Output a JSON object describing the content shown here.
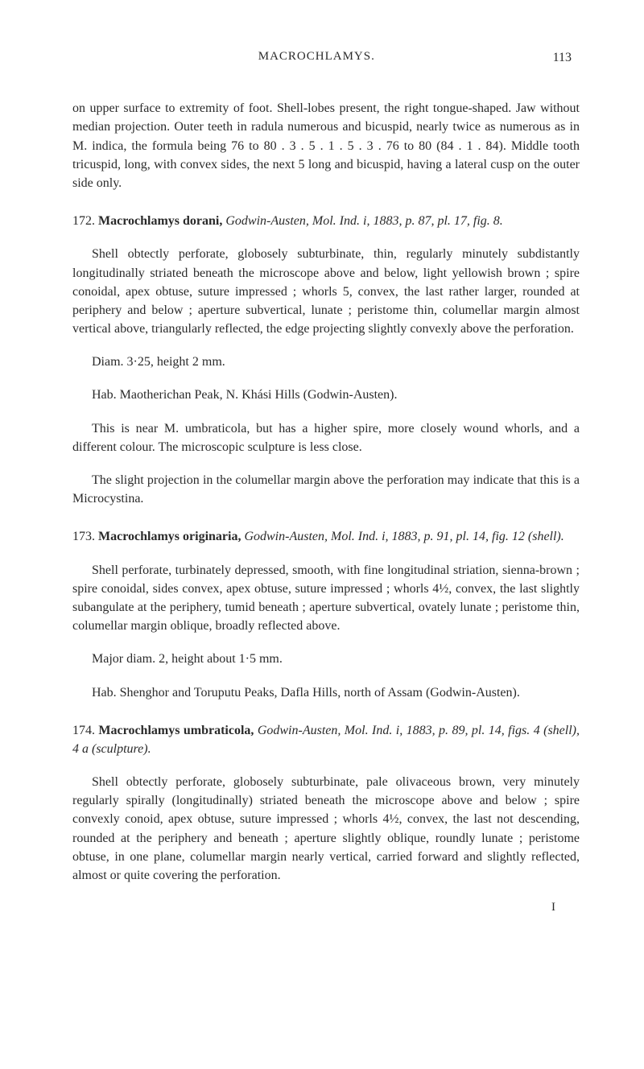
{
  "header": {
    "title": "MACROCHLAMYS.",
    "page": "113"
  },
  "para1": "on upper surface to extremity of foot. Shell-lobes present, the right tongue-shaped. Jaw without median projection. Outer teeth in radula numerous and bicuspid, nearly twice as numerous as in M. indica, the formula being 76 to 80 . 3 . 5 . 1 . 5 . 3 . 76 to 80 (84 . 1 . 84). Middle tooth tricuspid, long, with convex sides, the next 5 long and bicuspid, having a lateral cusp on the outer side only.",
  "entry172": {
    "num": "172. ",
    "name": "Macrochlamys dorani,",
    "cite": " Godwin-Austen, Mol. Ind. i, 1883, p. 87, pl. 17, fig. 8.",
    "p1": "Shell obtectly perforate, globosely subturbinate, thin, regularly minutely subdistantly longitudinally striated beneath the microscope above and below, light yellowish brown ; spire conoidal, apex obtuse, suture impressed ; whorls 5, convex, the last rather larger, rounded at periphery and below ; aperture subvertical, lunate ; peristome thin, columellar margin almost vertical above, triangularly reflected, the edge projecting slightly convexly above the perforation.",
    "p2": "Diam. 3·25, height 2 mm.",
    "p3": "Hab. Maotherichan Peak, N. Khási Hills (Godwin-Austen).",
    "p4": "This is near M. umbraticola, but has a higher spire, more closely wound whorls, and a different colour. The microscopic sculpture is less close.",
    "p5": "The slight projection in the columellar margin above the perforation may indicate that this is a Microcystina."
  },
  "entry173": {
    "num": "173. ",
    "name": "Macrochlamys originaria,",
    "cite": " Godwin-Austen, Mol. Ind. i, 1883, p. 91, pl. 14, fig. 12 (shell).",
    "p1": "Shell perforate, turbinately depressed, smooth, with fine longitudinal striation, sienna-brown ; spire conoidal, sides convex, apex obtuse, suture impressed ; whorls 4½, convex, the last slightly subangulate at the periphery, tumid beneath ; aperture subvertical, ovately lunate ; peristome thin, columellar margin oblique, broadly reflected above.",
    "p2": "Major diam. 2, height about 1·5 mm.",
    "p3": "Hab. Shenghor and Toruputu Peaks, Dafla Hills, north of Assam (Godwin-Austen)."
  },
  "entry174": {
    "num": "174. ",
    "name": "Macrochlamys umbraticola,",
    "cite": " Godwin-Austen, Mol. Ind. i, 1883, p. 89, pl. 14, figs. 4 (shell), 4 a (sculpture).",
    "p1": "Shell obtectly perforate, globosely subturbinate, pale olivaceous brown, very minutely regularly spirally (longitudinally) striated beneath the microscope above and below ; spire convexly conoid, apex obtuse, suture impressed ; whorls 4½, convex, the last not descending, rounded at the periphery and beneath ; aperture slightly oblique, roundly lunate ; peristome obtuse, in one plane, columellar margin nearly vertical, carried forward and slightly reflected, almost or quite covering the perforation."
  },
  "footer": "I"
}
